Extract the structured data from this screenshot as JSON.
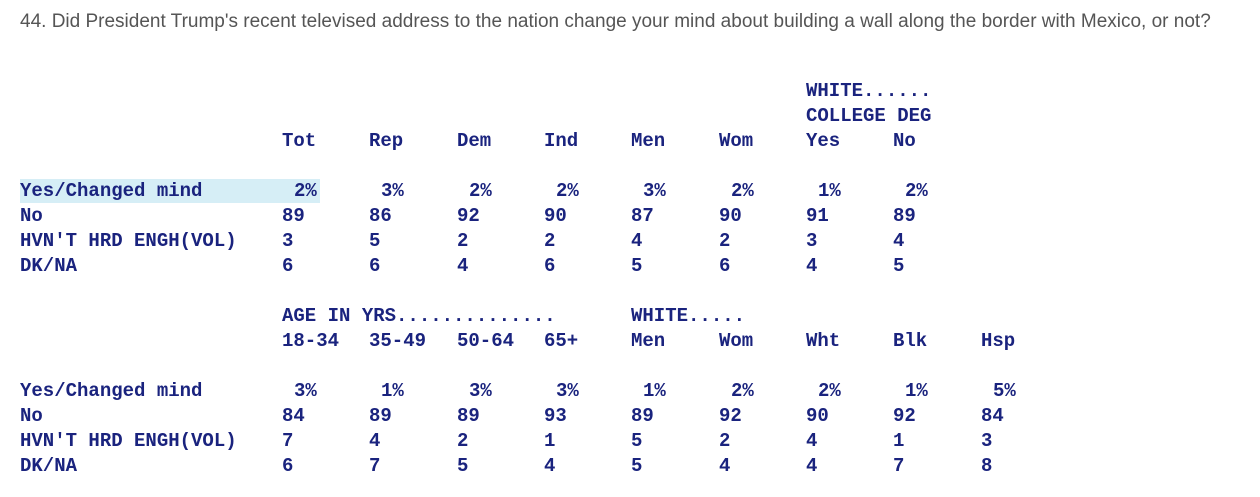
{
  "question": "44. Did President Trump's recent televised address to the nation change your mind about building a wall along the border with Mexico, or not?",
  "section1": {
    "group_header_line1": "WHITE......",
    "group_header_line2": "COLLEGE DEG",
    "columns": [
      "Tot",
      "Rep",
      "Dem",
      "Ind",
      "Men",
      "Wom",
      "Yes",
      "No"
    ],
    "rows": [
      {
        "label": "Yes/Changed mind",
        "values": [
          "2%",
          "3%",
          "2%",
          "2%",
          "3%",
          "2%",
          "1%",
          "2%"
        ]
      },
      {
        "label": "No",
        "values": [
          "89",
          "86",
          "92",
          "90",
          "87",
          "90",
          "91",
          "89"
        ]
      },
      {
        "label": "HVN'T HRD ENGH(VOL)",
        "values": [
          "3",
          "5",
          "2",
          "2",
          "4",
          "2",
          "3",
          "4"
        ]
      },
      {
        "label": "DK/NA",
        "values": [
          "6",
          "6",
          "4",
          "6",
          "5",
          "6",
          "4",
          "5"
        ]
      }
    ]
  },
  "section2": {
    "group_header_age": "AGE IN YRS..............",
    "group_header_white": "WHITE.....",
    "columns": [
      "18-34",
      "35-49",
      "50-64",
      "65+",
      "Men",
      "Wom",
      "Wht",
      "Blk",
      "Hsp"
    ],
    "rows": [
      {
        "label": "Yes/Changed mind",
        "values": [
          "3%",
          "1%",
          "3%",
          "3%",
          "1%",
          "2%",
          "2%",
          "1%",
          "5%"
        ]
      },
      {
        "label": "No",
        "values": [
          "84",
          "89",
          "89",
          "93",
          "89",
          "92",
          "90",
          "92",
          "84"
        ]
      },
      {
        "label": "HVN'T HRD ENGH(VOL)",
        "values": [
          "7",
          "4",
          "2",
          "1",
          "5",
          "2",
          "4",
          "1",
          "3"
        ]
      },
      {
        "label": "DK/NA",
        "values": [
          "6",
          "7",
          "5",
          "4",
          "5",
          "4",
          "4",
          "7",
          "8"
        ]
      }
    ]
  }
}
